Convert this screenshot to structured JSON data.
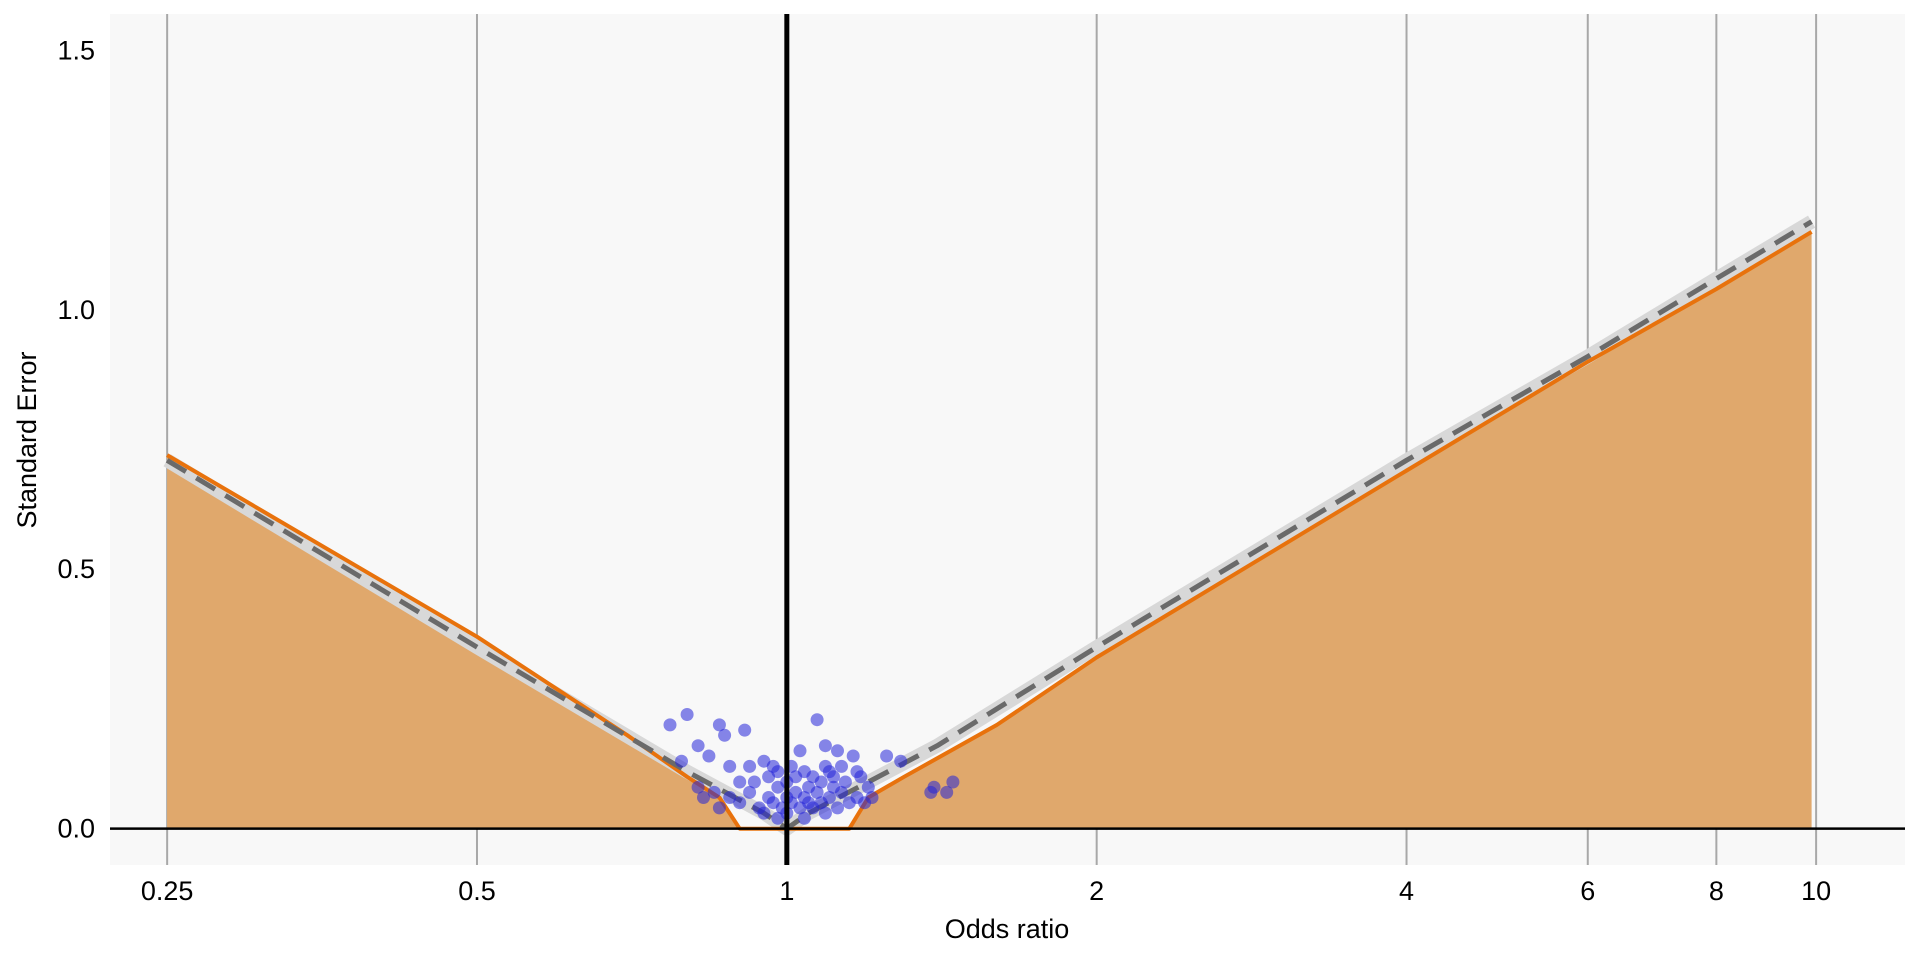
{
  "chart_data": {
    "type": "scatter",
    "title": "",
    "xlabel": "Odds ratio",
    "ylabel": "Standard Error",
    "x_scale": "log",
    "xlim": [
      0.22,
      12.2
    ],
    "ylim": [
      -0.07,
      1.57
    ],
    "x_ticks": [
      {
        "value": 0.25,
        "label": "0.25"
      },
      {
        "value": 0.5,
        "label": "0.5"
      },
      {
        "value": 1,
        "label": "1"
      },
      {
        "value": 2,
        "label": "2"
      },
      {
        "value": 4,
        "label": "4"
      },
      {
        "value": 6,
        "label": "6"
      },
      {
        "value": 8,
        "label": "8"
      },
      {
        "value": 10,
        "label": "10"
      }
    ],
    "y_ticks": [
      {
        "value": 0.0,
        "label": "0.0"
      },
      {
        "value": 0.5,
        "label": "0.5"
      },
      {
        "value": 1.0,
        "label": "1.0"
      },
      {
        "value": 1.5,
        "label": "1.5"
      }
    ],
    "grid": "vertical",
    "reference_line_x": 1,
    "colors": {
      "panel": "#f8f8f8",
      "grid": "#a8a8a8",
      "contour_fill": "#e0a86c",
      "contour_line": "#e8720c",
      "dashed_line": "#6a6a6a",
      "dashed_band": "#d8d8d8",
      "points": "#2424d8"
    },
    "series": [
      {
        "role": "contour",
        "points": [
          {
            "x": 0.25,
            "y": 0.72
          },
          {
            "x": 0.5,
            "y": 0.37
          },
          {
            "x": 0.7,
            "y": 0.18
          },
          {
            "x": 0.8,
            "y": 0.1
          },
          {
            "x": 0.86,
            "y": 0.06
          },
          {
            "x": 0.9,
            "y": 0.0
          },
          {
            "x": 1.15,
            "y": 0.0
          },
          {
            "x": 1.2,
            "y": 0.06
          },
          {
            "x": 1.3,
            "y": 0.1
          },
          {
            "x": 1.6,
            "y": 0.2
          },
          {
            "x": 2,
            "y": 0.33
          },
          {
            "x": 4,
            "y": 0.69
          },
          {
            "x": 6,
            "y": 0.9
          },
          {
            "x": 8,
            "y": 1.04
          },
          {
            "x": 9.9,
            "y": 1.15
          }
        ]
      },
      {
        "role": "dashed-line",
        "points": [
          {
            "x": 0.25,
            "y": 0.71
          },
          {
            "x": 0.5,
            "y": 0.35
          },
          {
            "x": 0.8,
            "y": 0.11
          },
          {
            "x": 0.95,
            "y": 0.03
          },
          {
            "x": 1.0,
            "y": 0.0
          },
          {
            "x": 1.05,
            "y": 0.03
          },
          {
            "x": 1.2,
            "y": 0.09
          },
          {
            "x": 1.4,
            "y": 0.16
          },
          {
            "x": 2,
            "y": 0.35
          },
          {
            "x": 4,
            "y": 0.71
          },
          {
            "x": 6,
            "y": 0.91
          },
          {
            "x": 8,
            "y": 1.06
          },
          {
            "x": 9.9,
            "y": 1.17
          }
        ]
      },
      {
        "role": "studies",
        "points": [
          {
            "x": 0.77,
            "y": 0.2
          },
          {
            "x": 0.8,
            "y": 0.22
          },
          {
            "x": 0.82,
            "y": 0.16
          },
          {
            "x": 0.79,
            "y": 0.13
          },
          {
            "x": 0.86,
            "y": 0.2
          },
          {
            "x": 0.87,
            "y": 0.18
          },
          {
            "x": 0.91,
            "y": 0.19
          },
          {
            "x": 1.07,
            "y": 0.21
          },
          {
            "x": 1.09,
            "y": 0.16
          },
          {
            "x": 1.12,
            "y": 0.15
          },
          {
            "x": 1.13,
            "y": 0.12
          },
          {
            "x": 1.16,
            "y": 0.14
          },
          {
            "x": 1.17,
            "y": 0.11
          },
          {
            "x": 1.2,
            "y": 0.08
          },
          {
            "x": 1.25,
            "y": 0.14
          },
          {
            "x": 1.29,
            "y": 0.13
          },
          {
            "x": 1.21,
            "y": 0.06
          },
          {
            "x": 1.03,
            "y": 0.15
          },
          {
            "x": 0.84,
            "y": 0.14
          },
          {
            "x": 0.88,
            "y": 0.12
          },
          {
            "x": 0.92,
            "y": 0.12
          },
          {
            "x": 0.95,
            "y": 0.13
          },
          {
            "x": 0.98,
            "y": 0.11
          },
          {
            "x": 1.01,
            "y": 0.12
          },
          {
            "x": 1.04,
            "y": 0.11
          },
          {
            "x": 1.06,
            "y": 0.1
          },
          {
            "x": 1.09,
            "y": 0.12
          },
          {
            "x": 1.11,
            "y": 0.1
          },
          {
            "x": 1.14,
            "y": 0.09
          },
          {
            "x": 1.18,
            "y": 0.1
          },
          {
            "x": 0.82,
            "y": 0.08
          },
          {
            "x": 0.85,
            "y": 0.07
          },
          {
            "x": 0.83,
            "y": 0.06
          },
          {
            "x": 0.86,
            "y": 0.04
          },
          {
            "x": 0.88,
            "y": 0.06
          },
          {
            "x": 0.9,
            "y": 0.05
          },
          {
            "x": 0.92,
            "y": 0.07
          },
          {
            "x": 0.94,
            "y": 0.04
          },
          {
            "x": 0.96,
            "y": 0.06
          },
          {
            "x": 0.97,
            "y": 0.05
          },
          {
            "x": 0.98,
            "y": 0.08
          },
          {
            "x": 0.99,
            "y": 0.04
          },
          {
            "x": 1.0,
            "y": 0.06
          },
          {
            "x": 1.0,
            "y": 0.03
          },
          {
            "x": 1.01,
            "y": 0.05
          },
          {
            "x": 1.02,
            "y": 0.07
          },
          {
            "x": 1.03,
            "y": 0.04
          },
          {
            "x": 1.04,
            "y": 0.06
          },
          {
            "x": 1.05,
            "y": 0.05
          },
          {
            "x": 1.06,
            "y": 0.04
          },
          {
            "x": 1.07,
            "y": 0.07
          },
          {
            "x": 1.08,
            "y": 0.05
          },
          {
            "x": 1.1,
            "y": 0.06
          },
          {
            "x": 1.12,
            "y": 0.04
          },
          {
            "x": 1.13,
            "y": 0.07
          },
          {
            "x": 1.15,
            "y": 0.05
          },
          {
            "x": 1.17,
            "y": 0.06
          },
          {
            "x": 1.19,
            "y": 0.05
          },
          {
            "x": 0.93,
            "y": 0.09
          },
          {
            "x": 0.96,
            "y": 0.1
          },
          {
            "x": 1.0,
            "y": 0.09
          },
          {
            "x": 1.02,
            "y": 0.1
          },
          {
            "x": 1.05,
            "y": 0.08
          },
          {
            "x": 1.08,
            "y": 0.09
          },
          {
            "x": 0.9,
            "y": 0.09
          },
          {
            "x": 1.11,
            "y": 0.08
          },
          {
            "x": 0.95,
            "y": 0.03
          },
          {
            "x": 1.09,
            "y": 0.03
          },
          {
            "x": 0.98,
            "y": 0.02
          },
          {
            "x": 1.04,
            "y": 0.02
          },
          {
            "x": 0.97,
            "y": 0.12
          },
          {
            "x": 1.1,
            "y": 0.11
          },
          {
            "x": 1.38,
            "y": 0.07
          },
          {
            "x": 1.39,
            "y": 0.08
          },
          {
            "x": 1.43,
            "y": 0.07
          },
          {
            "x": 1.45,
            "y": 0.09
          }
        ]
      }
    ]
  }
}
